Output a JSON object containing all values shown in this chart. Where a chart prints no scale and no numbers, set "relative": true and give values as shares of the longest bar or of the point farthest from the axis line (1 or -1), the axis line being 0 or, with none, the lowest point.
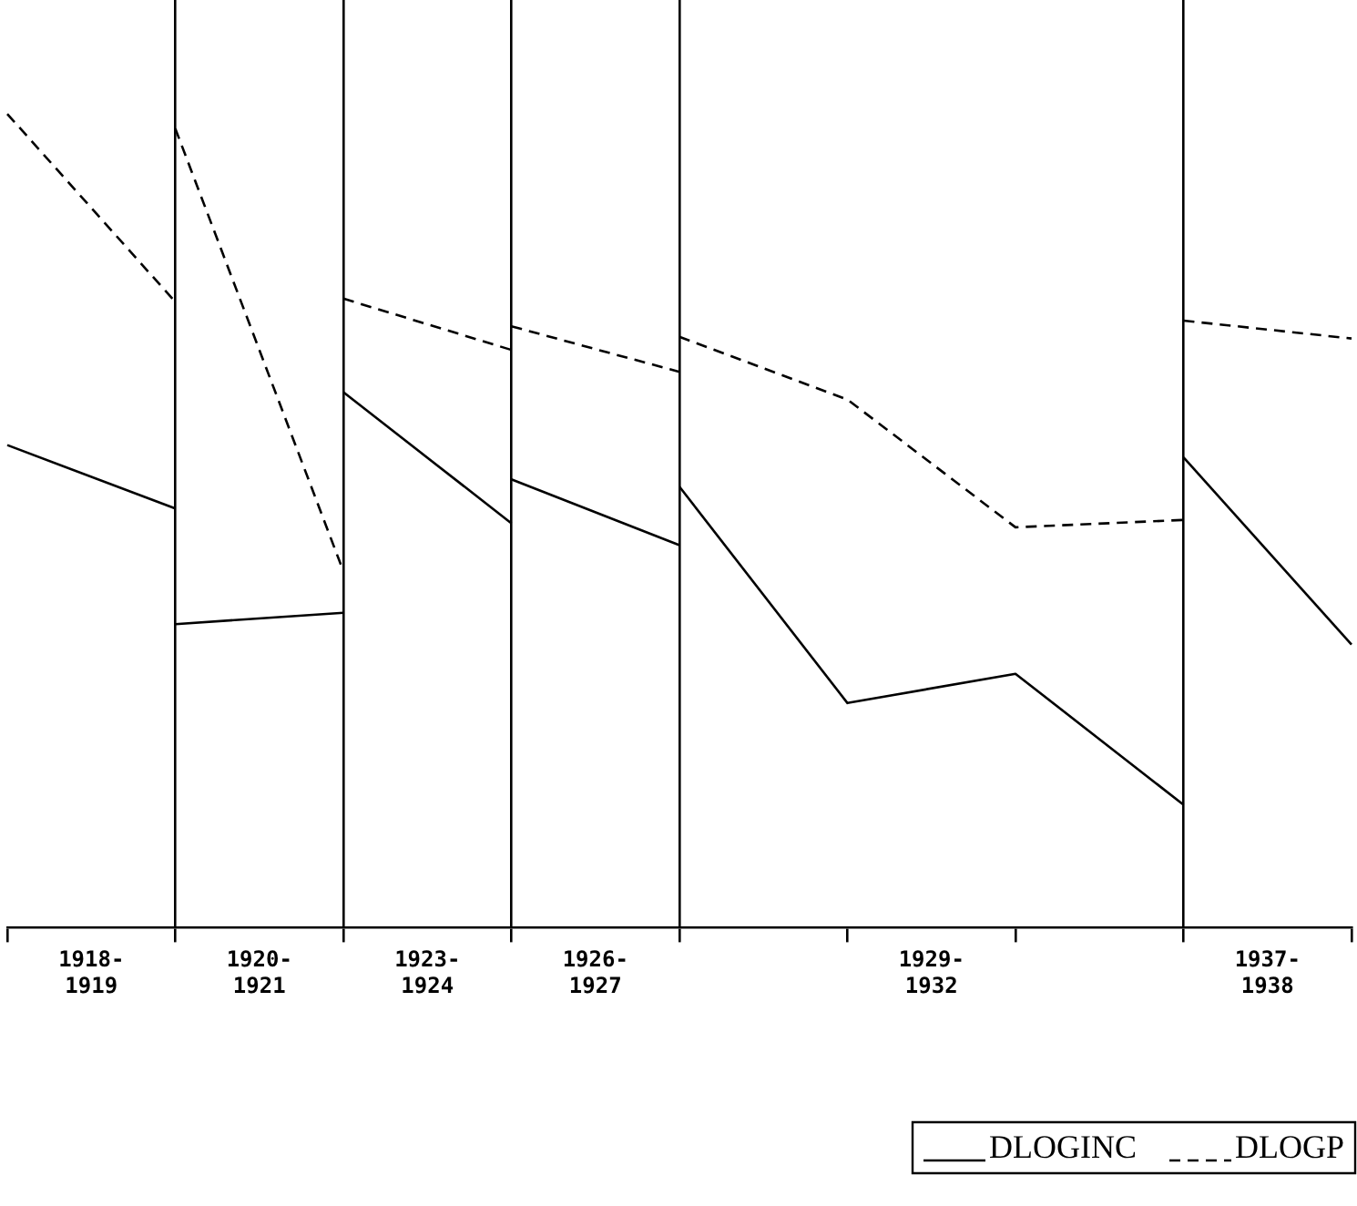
{
  "chart_data": {
    "type": "line",
    "relative": true,
    "categories": [
      null,
      "1918-\n1919",
      null,
      "1920-\n1921",
      null,
      "1923-\n1924",
      null,
      "1926-\n1927",
      null,
      null,
      null,
      "1929-\n1932",
      null,
      null,
      null,
      "1937-\n1938",
      null
    ],
    "series": [
      {
        "name": "DLOGINC",
        "color": "#000000",
        "line_style": "solid",
        "values": [
          0.593,
          null,
          0.515,
          null,
          null,
          null,
          null,
          null,
          null,
          null,
          null,
          null,
          null,
          null,
          null,
          null,
          null
        ]
      },
      {
        "color": "#000000",
        "line_style": "solid",
        "values": [
          null,
          null,
          0.373,
          null,
          0.387,
          null,
          null,
          null,
          null,
          null,
          null,
          null,
          null,
          null,
          null,
          null,
          null
        ]
      },
      {
        "color": "#000000",
        "line_style": "solid",
        "values": [
          null,
          null,
          null,
          null,
          0.658,
          null,
          0.497,
          null,
          null,
          null,
          null,
          null,
          null,
          null,
          null,
          null,
          null
        ]
      },
      {
        "color": "#000000",
        "line_style": "solid",
        "values": [
          null,
          null,
          null,
          null,
          null,
          null,
          0.551,
          null,
          0.47,
          null,
          null,
          null,
          null,
          null,
          null,
          null,
          null
        ]
      },
      {
        "color": "#000000",
        "line_style": "solid",
        "values": [
          null,
          null,
          null,
          null,
          null,
          null,
          null,
          null,
          0.542,
          null,
          0.276,
          null,
          0.312,
          null,
          0.151,
          null,
          null
        ]
      },
      {
        "color": "#000000",
        "line_style": "solid",
        "values": [
          null,
          null,
          null,
          null,
          null,
          null,
          null,
          null,
          null,
          null,
          null,
          null,
          null,
          null,
          0.578,
          null,
          0.348
        ]
      },
      {
        "name": "DLOGP",
        "color": "#000000",
        "line_style": "dashed",
        "values": [
          1,
          null,
          0.769,
          null,
          null,
          null,
          null,
          null,
          null,
          null,
          null,
          null,
          null,
          null,
          null,
          null,
          null
        ]
      },
      {
        "color": "#000000",
        "line_style": "dashed",
        "values": [
          null,
          null,
          0.982,
          null,
          0.438,
          null,
          null,
          null,
          null,
          null,
          null,
          null,
          null,
          null,
          null,
          null,
          null
        ]
      },
      {
        "color": "#000000",
        "line_style": "dashed",
        "values": [
          null,
          null,
          null,
          null,
          0.773,
          null,
          0.71,
          null,
          null,
          null,
          null,
          null,
          null,
          null,
          null,
          null,
          null
        ]
      },
      {
        "color": "#000000",
        "line_style": "dashed",
        "values": [
          null,
          null,
          null,
          null,
          null,
          null,
          0.739,
          null,
          0.683,
          null,
          null,
          null,
          null,
          null,
          null,
          null,
          null
        ]
      },
      {
        "color": "#000000",
        "line_style": "dashed",
        "values": [
          null,
          null,
          null,
          null,
          null,
          null,
          null,
          null,
          0.726,
          null,
          0.649,
          null,
          0.492,
          null,
          0.501,
          null,
          null
        ]
      },
      {
        "color": "#000000",
        "line_style": "dashed",
        "values": [
          null,
          null,
          null,
          null,
          null,
          null,
          null,
          null,
          null,
          null,
          null,
          null,
          null,
          null,
          0.746,
          null,
          0.724
        ]
      }
    ],
    "legend": "bottom right",
    "grid": "x"
  }
}
